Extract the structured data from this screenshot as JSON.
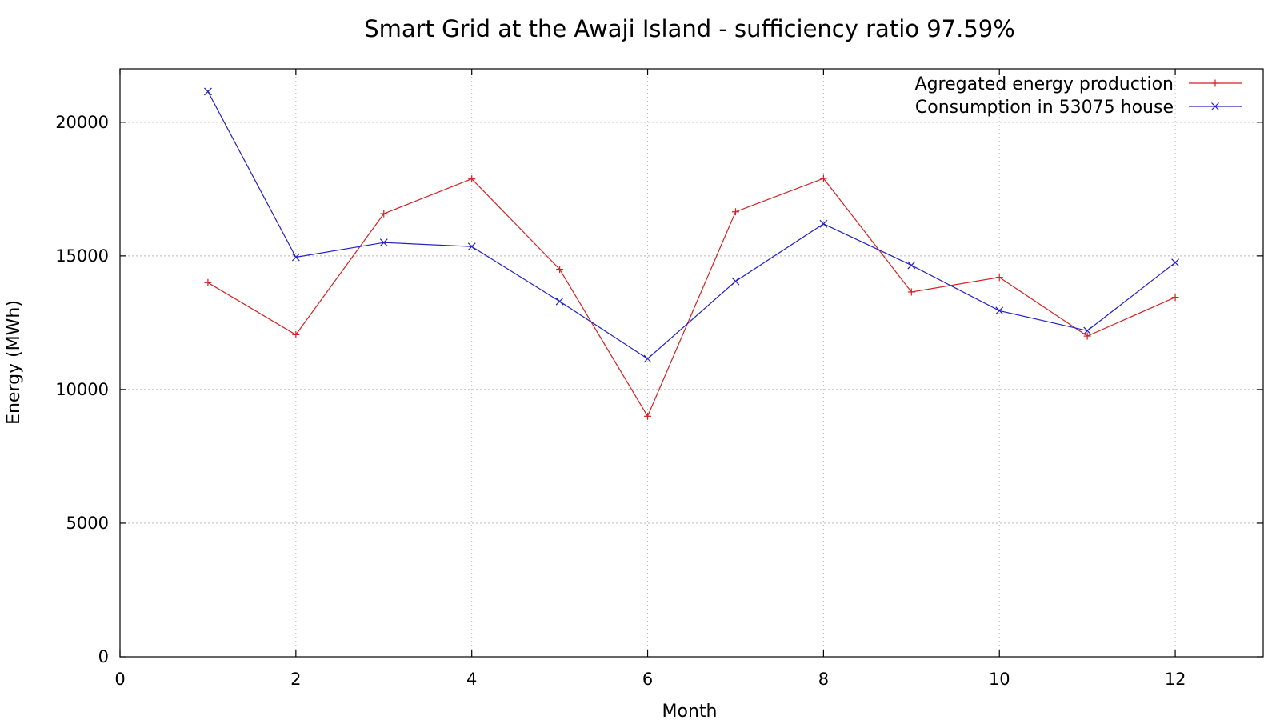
{
  "chart_data": {
    "type": "line",
    "title": "Smart Grid at the Awaji Island - sufficiency ratio 97.59%",
    "xlabel": "Month",
    "ylabel": "Energy (MWh)",
    "xlim": [
      0,
      13
    ],
    "ylim": [
      0,
      22000
    ],
    "x_ticks": [
      0,
      2,
      4,
      6,
      8,
      10,
      12
    ],
    "x_tick_labels": [
      "0",
      "2",
      "4",
      "6",
      "8",
      "10",
      "12"
    ],
    "y_ticks": [
      0,
      5000,
      10000,
      15000,
      20000
    ],
    "y_tick_labels": [
      "0",
      "5000",
      "10000",
      "15000",
      "20000"
    ],
    "grid": true,
    "legend_position": "top-right",
    "x": [
      1,
      2,
      3,
      4,
      5,
      6,
      7,
      8,
      9,
      10,
      11,
      12
    ],
    "series": [
      {
        "name": "Agregated energy production",
        "color": "#d42020",
        "marker": "plus",
        "values": [
          14000,
          12050,
          16580,
          17880,
          14500,
          9000,
          16650,
          17900,
          13650,
          14200,
          12000,
          13450
        ]
      },
      {
        "name": "Consumption in 53075 house",
        "color": "#2020c8",
        "marker": "cross",
        "values": [
          21150,
          14950,
          15500,
          15350,
          13300,
          11150,
          14050,
          16200,
          14650,
          12950,
          12200,
          14750
        ]
      }
    ]
  }
}
